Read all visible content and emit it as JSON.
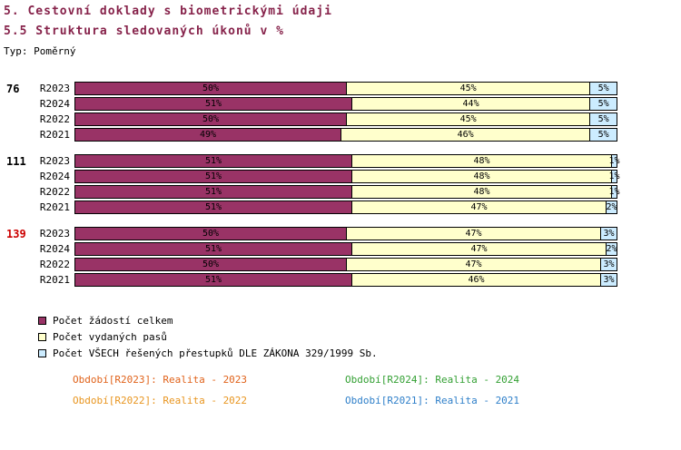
{
  "header": {
    "title_line1": "5. Cestovní doklady s biometrickými údaji",
    "title_line2": "5.5 Struktura sledovaných úkonů v %",
    "type_label": "Typ: Poměrný"
  },
  "chart_data": {
    "type": "bar",
    "orientation": "horizontal",
    "stacked": true,
    "title": "5.5 Struktura sledovaných úkonů v %",
    "value_unit": "%",
    "xlim": [
      0,
      100
    ],
    "series": [
      {
        "name": "Počet žádostí celkem",
        "color": "#993366"
      },
      {
        "name": "Počet vydaných pasů",
        "color": "#FFFFCC"
      },
      {
        "name": "Počet VŠECH řešených přestupků DLE ZÁKONA 329/1999 Sb.",
        "color": "#CCECFF"
      }
    ],
    "groups": [
      {
        "label": "76",
        "label_color": "#000000",
        "rows": [
          {
            "label": "R2023",
            "values": [
              50,
              45,
              5
            ]
          },
          {
            "label": "R2024",
            "values": [
              51,
              44,
              5
            ]
          },
          {
            "label": "R2022",
            "values": [
              50,
              45,
              5
            ]
          },
          {
            "label": "R2021",
            "values": [
              49,
              46,
              5
            ]
          }
        ]
      },
      {
        "label": "111",
        "label_color": "#000000",
        "rows": [
          {
            "label": "R2023",
            "values": [
              51,
              48,
              1
            ]
          },
          {
            "label": "R2024",
            "values": [
              51,
              48,
              1
            ]
          },
          {
            "label": "R2022",
            "values": [
              51,
              48,
              1
            ]
          },
          {
            "label": "R2021",
            "values": [
              51,
              47,
              2
            ]
          }
        ]
      },
      {
        "label": "139",
        "label_color": "#CC0000",
        "rows": [
          {
            "label": "R2023",
            "values": [
              50,
              47,
              3
            ]
          },
          {
            "label": "R2024",
            "values": [
              51,
              47,
              2
            ]
          },
          {
            "label": "R2022",
            "values": [
              50,
              47,
              3
            ]
          },
          {
            "label": "R2021",
            "values": [
              51,
              46,
              3
            ]
          }
        ]
      }
    ]
  },
  "footer": {
    "items": [
      {
        "label": "Období[R2023]: Realita - 2023",
        "color": "#E0621A"
      },
      {
        "label": "Období[R2024]: Realita - 2024",
        "color": "#33A033"
      },
      {
        "label": "Období[R2022]: Realita - 2022",
        "color": "#E8951F"
      },
      {
        "label": "Období[R2021]: Realita - 2021",
        "color": "#2E7FC9"
      }
    ]
  }
}
